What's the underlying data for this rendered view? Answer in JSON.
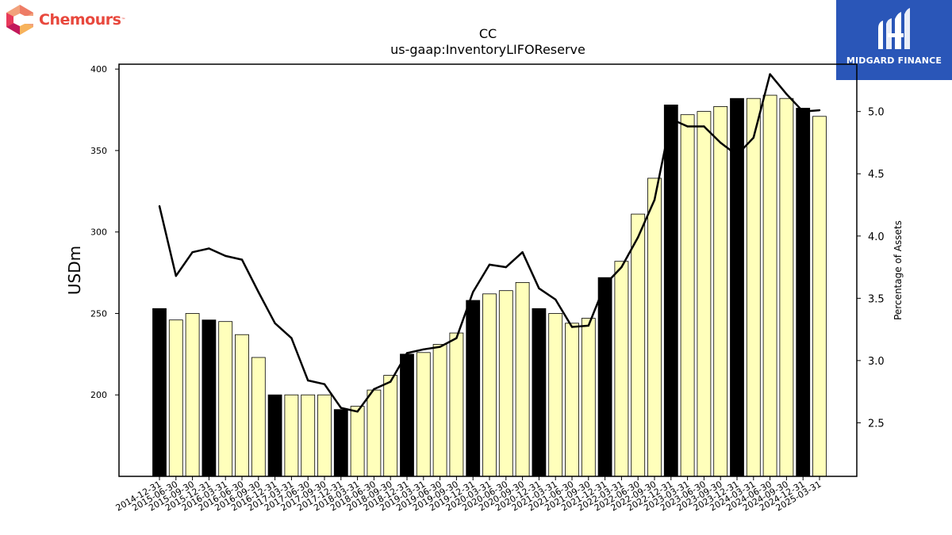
{
  "brand": {
    "name": "Chemours",
    "trademark": "™"
  },
  "watermark": {
    "name": "MIDGARD FINANCE"
  },
  "colors": {
    "bar_year_end": "#000000",
    "bar_quarter": "#ffffbb",
    "line": "#000000"
  },
  "chart_data": {
    "type": "bar",
    "title": "CC",
    "subtitle": "us-gaap:InventoryLIFOReserve",
    "ylabel": "USDm",
    "y2label": "Percentage of Assets",
    "ylim": [
      150,
      403
    ],
    "y2lim": [
      2.07,
      5.38
    ],
    "yticks": [
      200,
      250,
      300,
      350,
      400
    ],
    "y2ticks": [
      "2.5",
      "3.0",
      "3.5",
      "4.0",
      "4.5",
      "5.0"
    ],
    "categories": [
      "2014-12-31",
      "2015-06-30",
      "2015-09-30",
      "2015-12-31",
      "2016-03-31",
      "2016-06-30",
      "2016-09-30",
      "2016-12-31",
      "2017-03-31",
      "2017-06-30",
      "2017-09-30",
      "2017-12-31",
      "2018-03-31",
      "2018-06-30",
      "2018-09-30",
      "2018-12-31",
      "2019-03-31",
      "2019-06-30",
      "2019-09-30",
      "2019-12-31",
      "2020-03-31",
      "2020-06-30",
      "2020-09-30",
      "2020-12-31",
      "2021-03-31",
      "2021-06-30",
      "2021-09-30",
      "2021-12-31",
      "2022-03-31",
      "2022-06-30",
      "2022-09-30",
      "2022-12-31",
      "2023-03-31",
      "2023-06-30",
      "2023-09-30",
      "2023-12-31",
      "2024-03-31",
      "2024-06-30",
      "2024-09-30",
      "2024-12-31",
      "2025-03-31"
    ],
    "series": [
      {
        "values": [
          253,
          246,
          250,
          246,
          245,
          237,
          223,
          200,
          200,
          200,
          200,
          191,
          193,
          203,
          212,
          225,
          226,
          231,
          238,
          258,
          262,
          264,
          269,
          253,
          250,
          244,
          247,
          272,
          282,
          311,
          333,
          378,
          372,
          374,
          377,
          382,
          382,
          384,
          382,
          376,
          371
        ],
        "year_end": [
          true,
          false,
          false,
          true,
          false,
          false,
          false,
          true,
          false,
          false,
          false,
          true,
          false,
          false,
          false,
          true,
          false,
          false,
          false,
          true,
          false,
          false,
          false,
          true,
          false,
          false,
          false,
          true,
          false,
          false,
          false,
          true,
          false,
          false,
          false,
          true,
          false,
          false,
          false,
          true,
          false
        ]
      },
      {
        "axis": "right",
        "values": [
          4.24,
          3.68,
          3.87,
          3.9,
          3.84,
          3.81,
          3.55,
          3.3,
          3.18,
          2.84,
          2.81,
          2.62,
          2.59,
          2.77,
          2.83,
          3.06,
          3.09,
          3.11,
          3.18,
          3.55,
          3.77,
          3.75,
          3.87,
          3.58,
          3.49,
          3.27,
          3.28,
          3.61,
          3.75,
          3.99,
          4.29,
          4.94,
          4.88,
          4.88,
          4.75,
          4.65,
          4.79,
          5.3,
          5.14,
          5.0,
          5.01
        ]
      }
    ]
  }
}
